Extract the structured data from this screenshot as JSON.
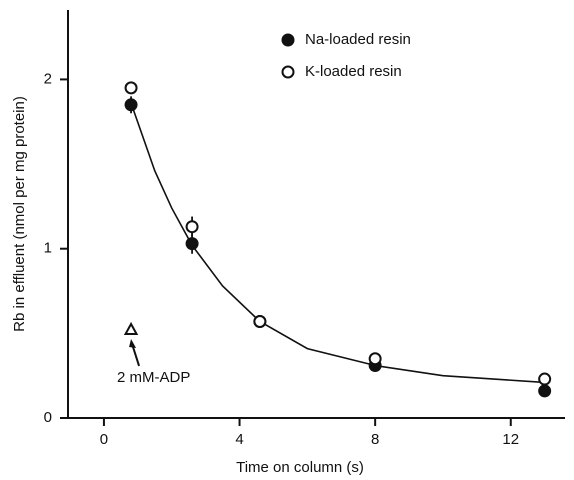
{
  "chart_data": {
    "type": "scatter",
    "xlabel": "Time on column (s)",
    "ylabel": "Rb in effluent (nmol per mg protein)",
    "xlim": [
      -1.06,
      13.6
    ],
    "xticks": [
      0,
      4,
      8,
      12
    ],
    "ylim": [
      0,
      2.41
    ],
    "yticks": [
      0,
      1,
      2
    ],
    "legend": "upper right",
    "series": [
      {
        "name": "Na-loaded resin",
        "marker": "filled",
        "color": "#111111",
        "x": [
          0.8,
          2.6,
          4.6,
          8,
          13
        ],
        "values": [
          1.85,
          1.03,
          0.57,
          0.31,
          0.16
        ],
        "errors": [
          0.05,
          0.06,
          null,
          null,
          null
        ]
      },
      {
        "name": "K-loaded resin",
        "marker": "open",
        "color": "#111111",
        "x": [
          0.8,
          2.6,
          4.6,
          8,
          13
        ],
        "values": [
          1.95,
          1.13,
          0.57,
          0.35,
          0.23
        ],
        "errors": [
          null,
          0.06,
          null,
          null,
          null
        ]
      }
    ],
    "fit": {
      "x": [
        0.8,
        1.5,
        2,
        2.6,
        3.5,
        4.6,
        6,
        8,
        10,
        13
      ],
      "values": [
        1.86,
        1.46,
        1.24,
        1.02,
        0.78,
        0.57,
        0.41,
        0.31,
        0.25,
        0.21
      ]
    },
    "annotation": {
      "text": "2 mM-ADP",
      "x": 0.8,
      "y": 0.52
    }
  }
}
